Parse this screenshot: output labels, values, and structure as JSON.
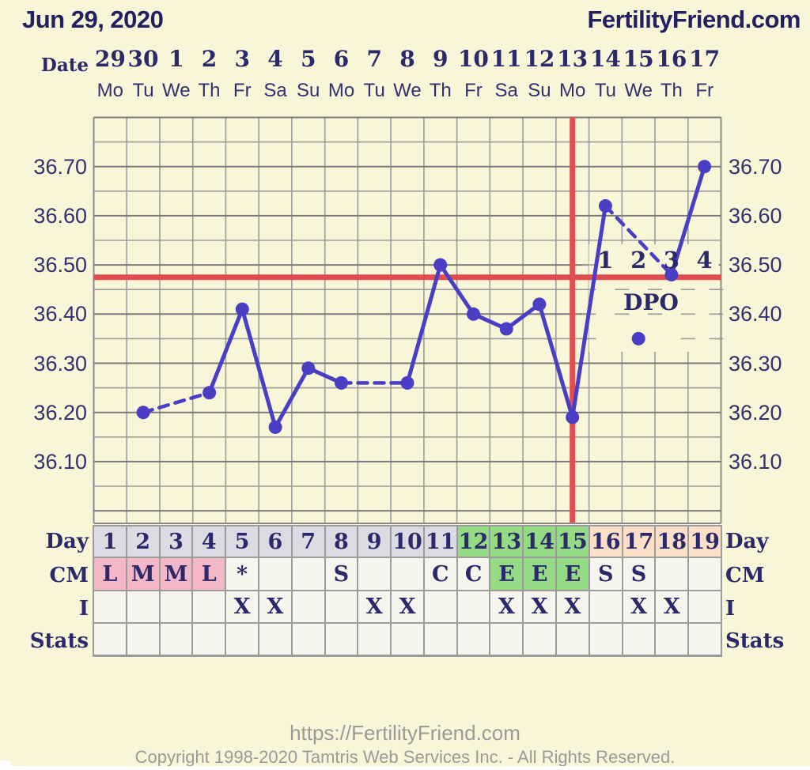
{
  "header": {
    "date": "Jun 29, 2020",
    "brand": "FertilityFriend.com"
  },
  "top_axis": {
    "label": "Date",
    "dates": [
      "29",
      "30",
      "1",
      "2",
      "3",
      "4",
      "5",
      "6",
      "7",
      "8",
      "9",
      "10",
      "11",
      "12",
      "13",
      "14",
      "15",
      "16",
      "17"
    ],
    "weekdays": [
      "Mo",
      "Tu",
      "We",
      "Th",
      "Fr",
      "Sa",
      "Su",
      "Mo",
      "Tu",
      "We",
      "Th",
      "Fr",
      "Sa",
      "Su",
      "Mo",
      "Tu",
      "We",
      "Th",
      "Fr"
    ]
  },
  "chart_data": {
    "type": "line",
    "title": "Basal body temperature chart (Celsius)",
    "ylabel_ticks": [
      "36.70",
      "36.60",
      "36.50",
      "36.40",
      "36.30",
      "36.20",
      "36.10"
    ],
    "ylim": [
      35.975,
      36.8
    ],
    "grid_step": 0.05,
    "num_days": 19,
    "series": [
      {
        "name": "temperature",
        "points": [
          [
            2,
            36.2
          ],
          [
            4,
            36.24
          ],
          [
            5,
            36.41
          ],
          [
            6,
            36.17
          ],
          [
            7,
            36.29
          ],
          [
            8,
            36.26
          ],
          [
            10,
            36.26
          ],
          [
            11,
            36.5
          ],
          [
            12,
            36.4
          ],
          [
            13,
            36.37
          ],
          [
            14,
            36.42
          ],
          [
            15,
            36.19
          ],
          [
            16,
            36.62
          ],
          [
            18,
            36.48
          ],
          [
            19,
            36.7
          ]
        ],
        "solid_runs": [
          [
            4,
            5,
            6,
            7,
            8
          ],
          [
            10,
            11,
            12,
            13,
            14,
            15,
            16
          ],
          [
            18,
            19
          ]
        ],
        "dashed_runs": [
          [
            2,
            4
          ],
          [
            8,
            10
          ],
          [
            16,
            18
          ]
        ]
      }
    ],
    "excluded_point": [
      17,
      36.35
    ],
    "coverline_temp": 36.475,
    "ovulation_day": 15,
    "dpo": {
      "label": "DPO",
      "numbers": [
        "1",
        "2",
        "3",
        "4"
      ],
      "start_day": 16
    },
    "legend_position": "none",
    "grid": true,
    "colors": {
      "line": "#4a3ec5",
      "red": "#e04f4f",
      "grid_minor": "#9c9c9c",
      "grid_major": "#7a7a7a",
      "background": "#f9f5d8",
      "text_navy": "#2c296a"
    }
  },
  "table": {
    "left_labels": [
      "Day",
      "CM",
      "I",
      "Stats"
    ],
    "right_labels": [
      "Day",
      "CM",
      "I",
      "Stats"
    ],
    "day_row": {
      "values": [
        "1",
        "2",
        "3",
        "4",
        "5",
        "6",
        "7",
        "8",
        "9",
        "10",
        "11",
        "12",
        "13",
        "14",
        "15",
        "16",
        "17",
        "18",
        "19"
      ],
      "bg": [
        "gray",
        "gray",
        "gray",
        "gray",
        "gray",
        "gray",
        "gray",
        "gray",
        "gray",
        "gray",
        "gray",
        "green",
        "green",
        "green",
        "green",
        "peach",
        "peach",
        "peach",
        "peach"
      ]
    },
    "cm_row": {
      "values": [
        "L",
        "M",
        "M",
        "L",
        "*",
        "",
        "",
        "S",
        "",
        "",
        "C",
        "C",
        "E",
        "E",
        "E",
        "S",
        "S",
        "",
        ""
      ],
      "bg": [
        "pink",
        "pink",
        "pink",
        "pink",
        "off",
        "off",
        "off",
        "off",
        "off",
        "off",
        "off",
        "off",
        "green",
        "green",
        "green",
        "off",
        "off",
        "off",
        "off"
      ]
    },
    "i_row": {
      "values": [
        "",
        "",
        "",
        "",
        "X",
        "X",
        "",
        "",
        "X",
        "X",
        "",
        "",
        "X",
        "X",
        "X",
        "",
        "X",
        "X",
        ""
      ]
    },
    "stats_row": {
      "values": [
        "",
        "",
        "",
        "",
        "",
        "",
        "",
        "",
        "",
        "",
        "",
        "",
        "",
        "",
        "",
        "",
        "",
        "",
        ""
      ]
    },
    "cell_colors": {
      "gray": "#dcdbe4",
      "green": "#95da84",
      "peach": "#fcdfc7",
      "pink": "#f3b7c7",
      "off": "#f5f5ee"
    }
  },
  "footer": {
    "url": "https://FertilityFriend.com",
    "copyright": "Copyright 1998-2020 Tamtris Web Services Inc. - All Rights Reserved."
  }
}
